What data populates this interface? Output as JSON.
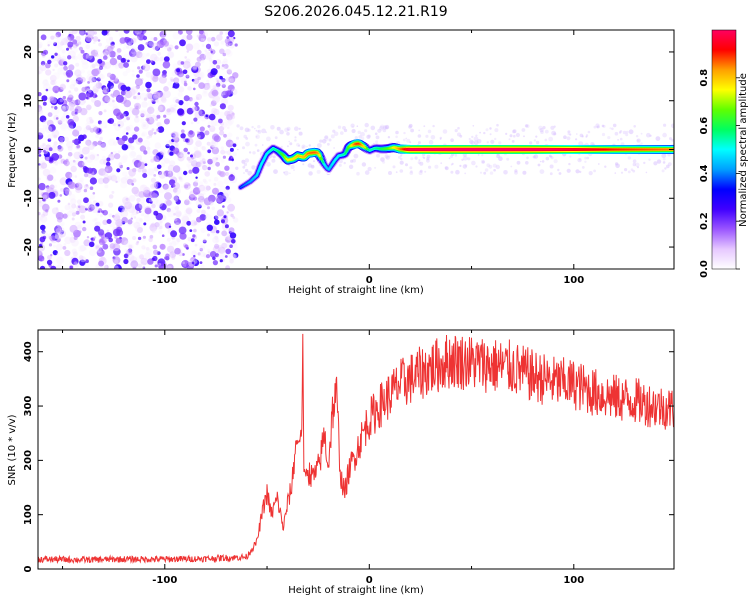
{
  "title": "S206.2026.045.12.21.R19",
  "chart_data": [
    {
      "type": "heatmap",
      "xlabel": "Height of straight line (km)",
      "ylabel": "Frequency (Hz)",
      "xlim": [
        -162,
        149
      ],
      "ylim": [
        -24.5,
        24.5
      ],
      "x_ticks": [
        -100,
        0,
        100
      ],
      "y_ticks": [
        -20,
        -10,
        0,
        10,
        20
      ],
      "colorbar": {
        "label": "Normalized spectral amplitude",
        "range": [
          0,
          1
        ],
        "ticks": [
          0.0,
          0.2,
          0.4,
          0.6,
          0.8
        ],
        "colors": [
          "#ffffff",
          "#e6c8ff",
          "#9a55ff",
          "#4000ff",
          "#0000ff",
          "#00a0ff",
          "#00ffff",
          "#00ff60",
          "#60ff00",
          "#ffff00",
          "#ffa000",
          "#ff0000",
          "#ff0060"
        ]
      },
      "noise_region_x": [
        -162,
        -65
      ],
      "ridge": {
        "x": [
          -63,
          -58,
          -55,
          -53,
          -50,
          -47,
          -45,
          -42,
          -40,
          -37,
          -35,
          -32,
          -30,
          -27,
          -25,
          -22,
          -20,
          -17,
          -15,
          -12,
          -10,
          -7,
          -5,
          -2,
          0,
          3,
          6,
          9,
          12,
          15,
          20,
          40,
          60,
          80,
          100,
          120,
          149
        ],
        "freq": [
          -7.8,
          -6.5,
          -5.3,
          -3.2,
          -0.8,
          0.2,
          -0.2,
          -1.2,
          -2.2,
          -1.9,
          -1.3,
          -1.6,
          -0.8,
          -0.6,
          -0.7,
          -3.1,
          -4.2,
          -2.3,
          -1.3,
          -1.0,
          0.6,
          1.1,
          1.2,
          0.4,
          -0.2,
          0.3,
          0.1,
          0.2,
          0.4,
          0.1,
          0.0,
          0.0,
          0.0,
          0.0,
          0.0,
          0.0,
          0.0
        ],
        "amplitude": [
          0.32,
          0.38,
          0.42,
          0.45,
          0.45,
          0.5,
          0.5,
          0.6,
          0.7,
          0.72,
          0.75,
          0.75,
          0.8,
          0.82,
          0.8,
          0.45,
          0.4,
          0.45,
          0.45,
          0.5,
          0.6,
          0.82,
          0.85,
          0.7,
          0.5,
          0.5,
          0.55,
          0.6,
          0.7,
          0.8,
          0.95,
          0.98,
          0.98,
          0.97,
          0.92,
          0.85,
          0.8
        ]
      }
    },
    {
      "type": "line",
      "xlabel": "Height of straight line (km)",
      "ylabel": "SNR (10 * v/v)",
      "xlim": [
        -162,
        149
      ],
      "ylim": [
        0,
        440
      ],
      "x_ticks": [
        -100,
        0,
        100
      ],
      "y_ticks": [
        0,
        100,
        200,
        300,
        400
      ],
      "series": [
        {
          "name": "SNR",
          "color": "#ee3333",
          "x": [
            -162,
            -140,
            -120,
            -100,
            -80,
            -60,
            -55,
            -52,
            -50,
            -48,
            -45,
            -42,
            -40,
            -38,
            -36,
            -34,
            -33,
            -32.5,
            -32,
            -30,
            -28,
            -26,
            -24,
            -22,
            -20,
            -18,
            -16,
            -14,
            -12,
            -10,
            -8,
            -6,
            -4,
            -2,
            0,
            5,
            10,
            15,
            20,
            25,
            30,
            40,
            50,
            60,
            70,
            80,
            90,
            100,
            110,
            120,
            130,
            140,
            149
          ],
          "y": [
            18,
            17,
            18,
            18,
            19,
            22,
            50,
            110,
            140,
            100,
            130,
            75,
            120,
            150,
            230,
            240,
            255,
            430,
            175,
            180,
            170,
            175,
            200,
            250,
            190,
            290,
            320,
            170,
            140,
            180,
            200,
            220,
            240,
            260,
            275,
            300,
            320,
            340,
            350,
            360,
            370,
            385,
            380,
            375,
            370,
            355,
            345,
            340,
            325,
            315,
            310,
            300,
            295
          ]
        }
      ]
    }
  ]
}
